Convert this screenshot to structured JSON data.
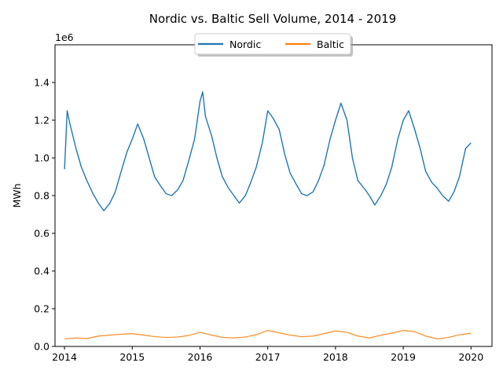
{
  "chart_data": {
    "type": "line",
    "title": "Nordic vs. Baltic Sell Volume,  2014 - 2019",
    "xlabel": "",
    "ylabel": "MWh",
    "y_offset_label": "1e6",
    "xlim": [
      2013.86,
      2020.31
    ],
    "ylim": [
      0,
      1600000
    ],
    "x_ticks": [
      2014,
      2015,
      2016,
      2017,
      2018,
      2019,
      2020
    ],
    "x_tick_labels": [
      "2014",
      "2015",
      "2016",
      "2017",
      "2018",
      "2019",
      "2020"
    ],
    "y_ticks": [
      0,
      200000,
      400000,
      600000,
      800000,
      1000000,
      1200000,
      1400000
    ],
    "y_tick_labels": [
      "0.0",
      "0.2",
      "0.4",
      "0.6",
      "0.8",
      "1.0",
      "1.2",
      "1.4"
    ],
    "grid": false,
    "legend_position": "top-center",
    "series": [
      {
        "name": "Nordic",
        "color": "#1f77b4",
        "x": [
          2014.0,
          2014.04,
          2014.08,
          2014.17,
          2014.25,
          2014.33,
          2014.42,
          2014.5,
          2014.58,
          2014.67,
          2014.75,
          2014.83,
          2014.92,
          2015.0,
          2015.08,
          2015.17,
          2015.25,
          2015.33,
          2015.42,
          2015.5,
          2015.58,
          2015.67,
          2015.75,
          2015.83,
          2015.92,
          2016.0,
          2016.04,
          2016.08,
          2016.17,
          2016.25,
          2016.33,
          2016.42,
          2016.5,
          2016.58,
          2016.67,
          2016.75,
          2016.83,
          2016.92,
          2017.0,
          2017.08,
          2017.17,
          2017.25,
          2017.33,
          2017.42,
          2017.5,
          2017.58,
          2017.67,
          2017.75,
          2017.83,
          2017.92,
          2018.0,
          2018.08,
          2018.17,
          2018.25,
          2018.33,
          2018.42,
          2018.5,
          2018.58,
          2018.67,
          2018.75,
          2018.83,
          2018.92,
          2019.0,
          2019.08,
          2019.17,
          2019.25,
          2019.33,
          2019.42,
          2019.5,
          2019.58,
          2019.67,
          2019.75,
          2019.83,
          2019.92,
          2020.0
        ],
        "values": [
          940000,
          1250000,
          1180000,
          1050000,
          950000,
          880000,
          810000,
          760000,
          720000,
          760000,
          820000,
          920000,
          1030000,
          1100000,
          1180000,
          1100000,
          1000000,
          900000,
          850000,
          810000,
          800000,
          830000,
          880000,
          980000,
          1100000,
          1300000,
          1350000,
          1220000,
          1120000,
          1000000,
          900000,
          840000,
          800000,
          760000,
          800000,
          870000,
          950000,
          1080000,
          1250000,
          1210000,
          1150000,
          1020000,
          920000,
          860000,
          810000,
          800000,
          820000,
          880000,
          960000,
          1100000,
          1200000,
          1290000,
          1200000,
          1000000,
          880000,
          840000,
          800000,
          750000,
          800000,
          860000,
          950000,
          1100000,
          1200000,
          1250000,
          1150000,
          1050000,
          930000,
          870000,
          840000,
          800000,
          770000,
          820000,
          900000,
          1050000,
          1080000
        ]
      },
      {
        "name": "Baltic",
        "color": "#ff7f0e",
        "x": [
          2014.0,
          2014.17,
          2014.33,
          2014.5,
          2014.67,
          2014.83,
          2015.0,
          2015.17,
          2015.33,
          2015.5,
          2015.67,
          2015.83,
          2016.0,
          2016.17,
          2016.33,
          2016.5,
          2016.67,
          2016.83,
          2017.0,
          2017.17,
          2017.33,
          2017.5,
          2017.67,
          2017.83,
          2018.0,
          2018.17,
          2018.33,
          2018.5,
          2018.67,
          2018.83,
          2019.0,
          2019.17,
          2019.33,
          2019.5,
          2019.67,
          2019.83,
          2020.0
        ],
        "values": [
          40000,
          45000,
          42000,
          55000,
          60000,
          65000,
          68000,
          60000,
          52000,
          48000,
          50000,
          58000,
          75000,
          60000,
          48000,
          45000,
          50000,
          62000,
          85000,
          72000,
          60000,
          52000,
          55000,
          68000,
          82000,
          75000,
          55000,
          45000,
          60000,
          70000,
          85000,
          78000,
          55000,
          40000,
          48000,
          62000,
          70000
        ]
      }
    ]
  }
}
